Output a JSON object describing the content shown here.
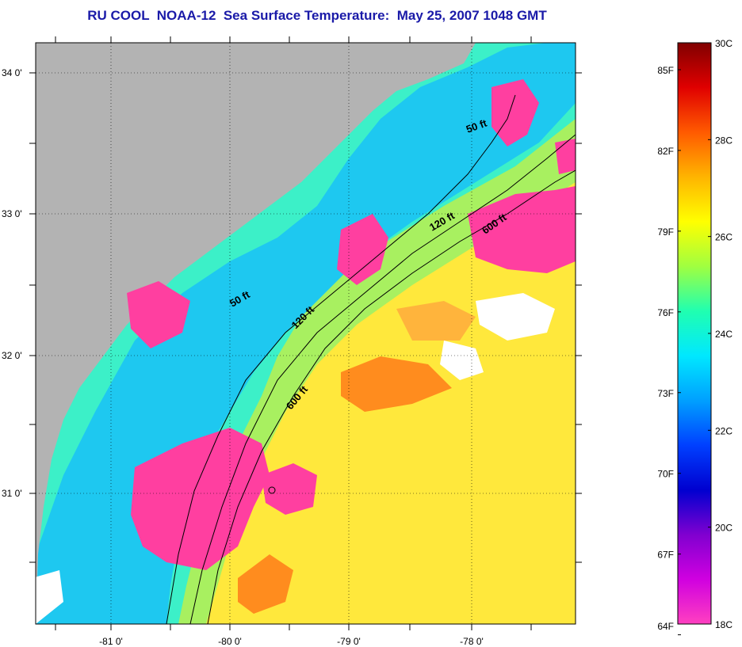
{
  "title": "RU COOL  NOAA-12  Sea Surface Temperature:  May 25, 2007 1048 GMT",
  "map": {
    "x_ticks": [
      "-81 0'",
      "-80 0'",
      "-79 0'",
      "-78 0'"
    ],
    "y_ticks": [
      "34 0'",
      "33 0'",
      "32 0'",
      "31 0'"
    ],
    "contour_labels": [
      "50 ft",
      "120 ft",
      "600 ft",
      "50 ft",
      "120 ft",
      "600 ft"
    ],
    "colors": {
      "land": "#b3b3b3",
      "cloud": "#ff3fa0",
      "no_data": "#ffffff",
      "nearshore": "#1ec8f0",
      "shelf": "#3cf0c8",
      "midshelf": "#a8f060",
      "offshore_warm": "#ffe83c",
      "gulfstream": "#ff8c1e"
    }
  },
  "colorbar": {
    "celsius_labels": [
      "30C",
      "28C",
      "26C",
      "24C",
      "22C",
      "20C",
      "18C"
    ],
    "fahrenheit_labels": [
      "85F",
      "82F",
      "79F",
      "76F",
      "73F",
      "70F",
      "67F",
      "64F"
    ],
    "range_c": [
      18,
      30
    ],
    "stops": [
      "#800000",
      "#e00000",
      "#ff5a00",
      "#ffb400",
      "#ffff00",
      "#a0ff40",
      "#20ffb0",
      "#00e8ff",
      "#00a0ff",
      "#0040ff",
      "#0000d0",
      "#8000d0",
      "#d000e0",
      "#ff40c0"
    ]
  }
}
